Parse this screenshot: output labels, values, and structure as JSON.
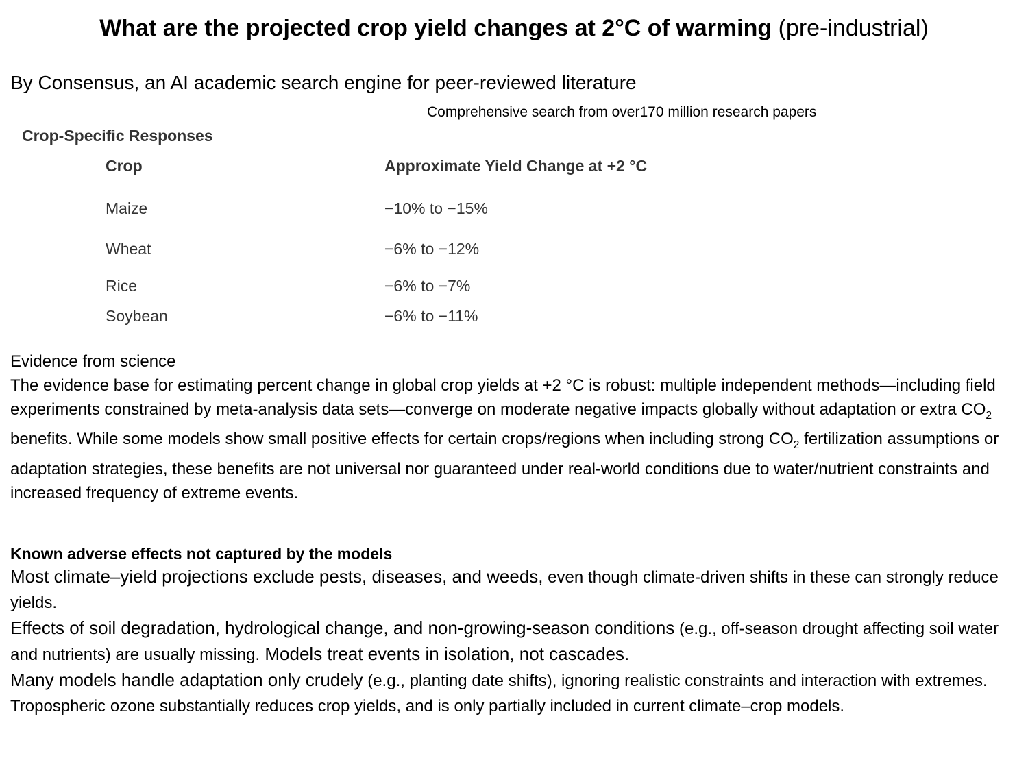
{
  "title": {
    "bold": "What are the projected crop yield changes at 2°C of warming",
    "normal": " (pre-industrial)"
  },
  "subtitle": "By Consensus, an AI academic search engine for peer-reviewed literature",
  "search_note": "Comprehensive search from over170 million research papers",
  "table": {
    "heading": "Crop-Specific Responses",
    "columns": [
      "Crop",
      "Approximate Yield Change at +2 °C"
    ],
    "rows": [
      [
        "Maize",
        "−10% to −15%"
      ],
      [
        "Wheat",
        "−6% to −12%"
      ],
      [
        "Rice",
        "−6% to −7%"
      ],
      [
        "Soybean",
        "−6% to −11%"
      ]
    ]
  },
  "evidence": {
    "heading": "Evidence from science",
    "p1": "The evidence base for estimating percent change in global crop yields at +2 °C is robust: multiple independent methods—including field experiments constrained by meta-analysis data sets—converge on moderate negative impacts globally without adaptation or extra CO",
    "sub": "2",
    "p2": " benefits. While some models show small positive effects for certain crops/regions when including strong CO",
    "p3": " fertilization assumptions or adaptation strategies, these benefits are not universal nor guaranteed under real-world conditions due to water/nutrient constraints and increased frequency of extreme events."
  },
  "adverse": {
    "heading": "Known adverse effects not captured by the models",
    "items": [
      {
        "a": "Most climate–yield projections exclude pests, diseases, and weeds,",
        "b": " even though climate-driven shifts in these can strongly reduce yields."
      },
      {
        "a": "Effects of soil degradation, hydrological change, and non-growing-season conditions",
        "b": " (e.g., off-season drought affecting soil water and nutrients) are usually missing.",
        "c": " Models treat events in isolation, not cascades."
      },
      {
        "a": "Many models handle adaptation only crudely",
        "b": " (e.g., planting date shifts), ignoring realistic constraints and interaction with extremes."
      },
      {
        "b": "Tropospheric ozone substantially reduces crop yields, and is only partially included in current climate–crop models."
      }
    ]
  }
}
